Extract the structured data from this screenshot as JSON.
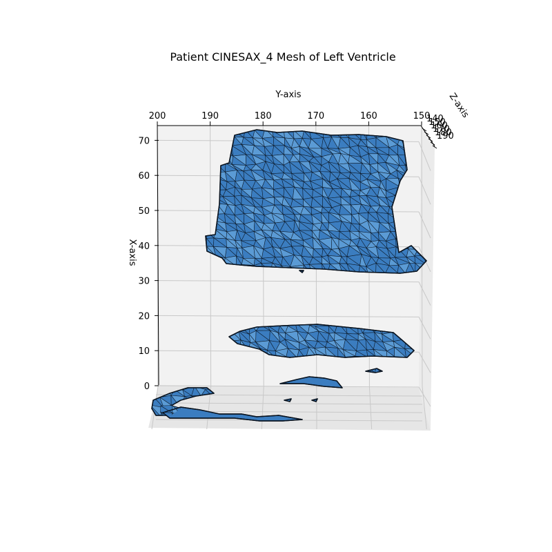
{
  "chart_data": {
    "type": "surface-3d",
    "title": "Patient CINESAX_4 Mesh of Left Ventricle",
    "xlabel": "X-axis",
    "ylabel": "Y-axis",
    "zlabel": "Z-axis",
    "x_ticks": [
      0,
      10,
      20,
      30,
      40,
      50,
      60,
      70
    ],
    "y_ticks": [
      200,
      190,
      180,
      170,
      160,
      150
    ],
    "z_ticks": [
      140,
      150,
      160,
      170,
      180,
      190
    ],
    "xlim": [
      0,
      74
    ],
    "ylim": [
      147,
      201
    ],
    "zlim": [
      140,
      195
    ],
    "grid": true,
    "colors": {
      "face": "#3b7dc0",
      "face_light": "#5b9bd5",
      "edge": "#0a1420",
      "pane": "#f2f2f2",
      "grid": "#c8c8c8"
    }
  }
}
